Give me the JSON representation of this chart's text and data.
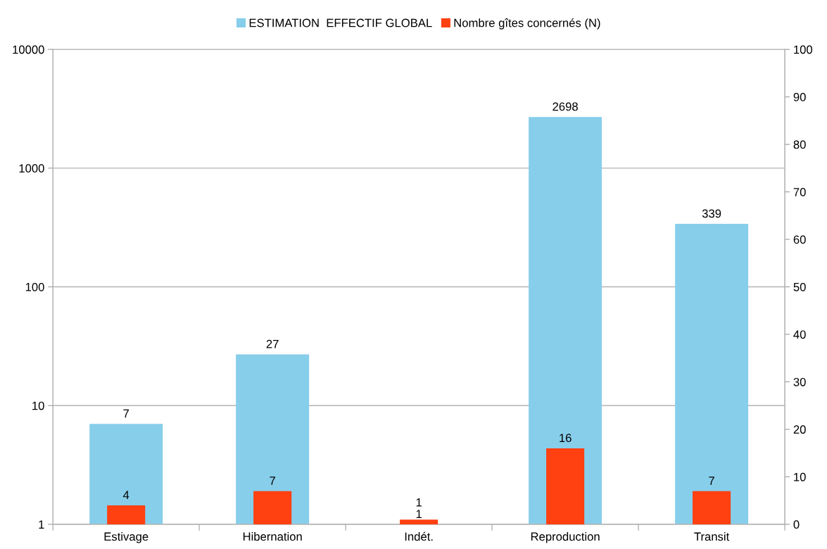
{
  "chart_data": {
    "type": "bar",
    "categories": [
      "Estivage",
      "Hibernation",
      "Indét.",
      "Reproduction",
      "Transit"
    ],
    "series": [
      {
        "name": "ESTIMATION  EFFECTIF GLOBAL",
        "color": "#87ceeb",
        "values": [
          7,
          27,
          1,
          2698,
          339
        ]
      },
      {
        "name": "Nombre gîtes concernés (N)",
        "color": "#ff4011",
        "values": [
          4,
          7,
          1,
          16,
          7
        ],
        "axis": "y2"
      }
    ],
    "log": "y",
    "ylim": [
      1,
      10000
    ],
    "yticks": [
      1,
      10,
      100,
      1000,
      10000
    ],
    "y2lim": [
      0,
      100
    ],
    "y2ticks": [
      0,
      10,
      20,
      30,
      40,
      50,
      60,
      70,
      80,
      90,
      100
    ],
    "grid": "y",
    "legend": "top",
    "data_labels": true
  }
}
